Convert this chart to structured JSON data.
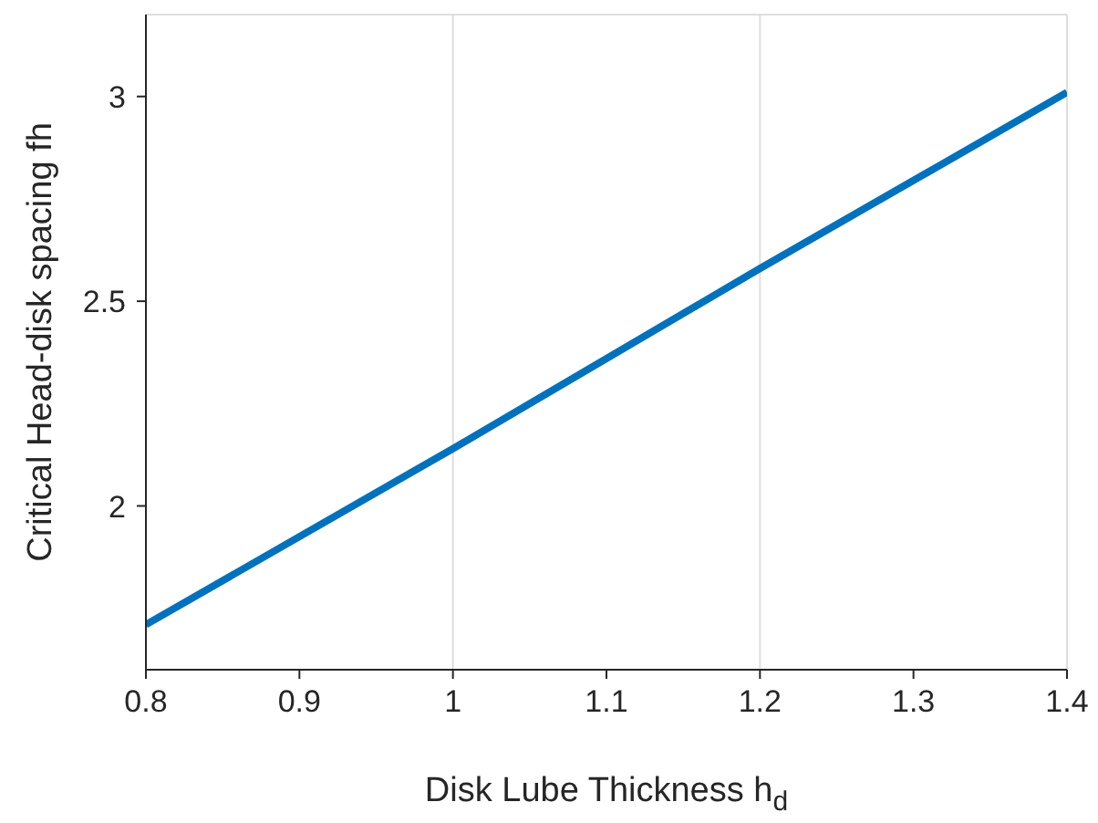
{
  "chart_data": {
    "type": "line",
    "xlabel": "Disk Lube Thickness h$_{d}$",
    "ylabel": "Critical Head-disk spacing fh",
    "x": [
      0.8,
      1.0,
      1.2,
      1.4
    ],
    "series": [
      {
        "color": "#0072bd",
        "values": [
          1.71,
          2.14,
          2.58,
          3.01
        ]
      }
    ],
    "xlim": [
      0.8,
      1.4
    ],
    "xticks": [
      0.8,
      0.9,
      1,
      1.1,
      1.2,
      1.3,
      1.4
    ],
    "ylim": [
      1.6,
      3.2
    ],
    "yticks": [
      2,
      2.5,
      3
    ],
    "grid": true,
    "legend": false,
    "marker": "none",
    "line_style": "solid"
  }
}
